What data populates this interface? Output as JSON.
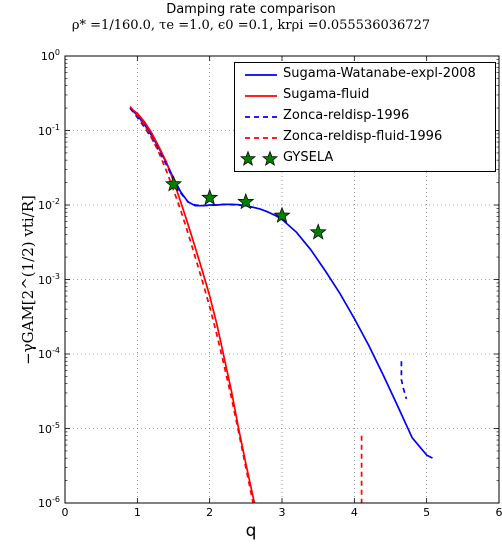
{
  "chart_data": {
    "type": "line",
    "title": "Damping rate comparison",
    "subtitle": "ρ* =1/160.0, τe =1.0, ϵ0 =0.1, krρi =0.055536036727",
    "xlabel": "q",
    "ylabel": "−γGAM[2^(1/2) vti/R]",
    "xlim": [
      0,
      6
    ],
    "ylim": [
      1e-06,
      1
    ],
    "yscale": "log",
    "grid": true,
    "legend_position": "top-right",
    "x_ticks": [
      "0",
      "1",
      "2",
      "3",
      "4",
      "5",
      "6"
    ],
    "y_ticks": [
      {
        "base": "10",
        "exp": "0"
      },
      {
        "base": "10",
        "exp": "-1"
      },
      {
        "base": "10",
        "exp": "-2"
      },
      {
        "base": "10",
        "exp": "-3"
      },
      {
        "base": "10",
        "exp": "-4"
      },
      {
        "base": "10",
        "exp": "-5"
      },
      {
        "base": "10",
        "exp": "-6"
      }
    ],
    "series": [
      {
        "name": "Sugama-Watanabe-expl-2008",
        "color": "#0000ff",
        "style": "solid",
        "x": [
          0.9,
          1.0,
          1.1,
          1.2,
          1.3,
          1.4,
          1.5,
          1.6,
          1.7,
          1.8,
          1.9,
          2.0,
          2.1,
          2.2,
          2.3,
          2.4,
          2.5,
          2.6,
          2.7,
          2.8,
          2.9,
          3.0,
          3.2,
          3.4,
          3.6,
          3.8,
          4.0,
          4.2,
          4.4,
          4.6,
          4.8,
          5.0,
          5.08
        ],
        "y": [
          0.2,
          0.16,
          0.12,
          0.085,
          0.058,
          0.037,
          0.023,
          0.015,
          0.011,
          0.0098,
          0.0098,
          0.01,
          0.01,
          0.0102,
          0.0102,
          0.0101,
          0.0098,
          0.0093,
          0.0088,
          0.0081,
          0.0073,
          0.0064,
          0.0043,
          0.0025,
          0.0013,
          0.00065,
          0.0003,
          0.00013,
          5.2e-05,
          2e-05,
          7.5e-06,
          4.4e-06,
          4e-06
        ]
      },
      {
        "name": "Sugama-fluid",
        "color": "#ff0000",
        "style": "solid",
        "x": [
          0.9,
          1.0,
          1.1,
          1.2,
          1.3,
          1.4,
          1.5,
          1.6,
          1.7,
          1.8,
          1.9,
          2.0,
          2.1,
          2.2,
          2.3,
          2.4,
          2.5,
          2.6,
          2.62
        ],
        "y": [
          0.2,
          0.17,
          0.13,
          0.092,
          0.06,
          0.038,
          0.021,
          0.011,
          0.0055,
          0.0027,
          0.0013,
          0.0006,
          0.00025,
          9e-05,
          3.2e-05,
          1e-05,
          3.4e-06,
          1.2e-06,
          1e-06
        ]
      },
      {
        "name": "Zonca-reldisp-1996",
        "color": "#0000ff",
        "style": "dashed",
        "x": [
          0.9,
          1.0,
          1.1,
          1.2,
          1.3,
          1.4,
          1.5,
          1.6,
          1.7,
          1.8,
          1.9,
          2.0,
          2.1,
          2.2,
          2.3,
          2.4,
          2.5,
          2.6
        ],
        "y": [
          0.2,
          0.15,
          0.11,
          0.078,
          0.053,
          0.035,
          0.022,
          0.0145,
          0.011,
          0.01,
          0.0098,
          0.0099,
          0.01,
          0.0102,
          0.0101,
          0.01,
          0.0097,
          0.0093
        ]
      },
      {
        "name": "Zonca-reldisp-fluid-1996",
        "color": "#ff0000",
        "style": "dashed",
        "x": [
          0.9,
          1.0,
          1.1,
          1.2,
          1.3,
          1.4,
          1.5,
          1.6,
          1.7,
          1.8,
          1.9,
          2.0,
          2.1,
          2.2,
          2.3,
          2.4,
          2.5,
          2.6
        ],
        "y": [
          0.21,
          0.16,
          0.115,
          0.08,
          0.05,
          0.029,
          0.016,
          0.0085,
          0.0042,
          0.002,
          0.00095,
          0.00043,
          0.00018,
          7e-05,
          2.6e-05,
          9e-06,
          3e-06,
          1e-06
        ]
      },
      {
        "name": "GYSELA",
        "color": "#008000",
        "style": "marker-star",
        "x": [
          1.5,
          2.0,
          2.5,
          3.0,
          3.5
        ],
        "y": [
          0.019,
          0.0125,
          0.011,
          0.0072,
          0.0043
        ]
      }
    ],
    "extra_segments": [
      {
        "color": "#0000ff",
        "style": "dashed",
        "x": [
          4.65,
          4.65,
          4.68,
          4.72
        ],
        "y": [
          8e-05,
          4.5e-05,
          3.4e-05,
          2.5e-05
        ]
      },
      {
        "color": "#ff0000",
        "style": "dashed",
        "x": [
          4.1,
          4.1
        ],
        "y": [
          8e-06,
          1e-06
        ]
      }
    ]
  }
}
